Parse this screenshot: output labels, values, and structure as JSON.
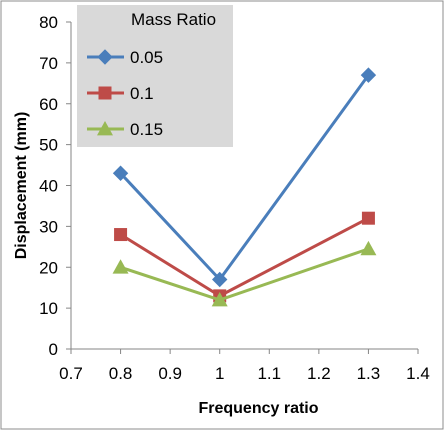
{
  "chart_data": {
    "type": "line",
    "xlabel": "Frequency ratio",
    "ylabel": "Displacement (mm)",
    "xlim": [
      0.7,
      1.4
    ],
    "ylim": [
      0,
      80
    ],
    "x_ticks": [
      "0.7",
      "0.8",
      "0.9",
      "1",
      "1.1",
      "1.2",
      "1.3",
      "1.4"
    ],
    "y_ticks": [
      "0",
      "10",
      "20",
      "30",
      "40",
      "50",
      "60",
      "70",
      "80"
    ],
    "grid": false,
    "legend": {
      "title": "Mass Ratio",
      "placement": "top-left",
      "background": "#d9d9d9"
    },
    "x": [
      0.8,
      1.0,
      1.3
    ],
    "series": [
      {
        "name": "0.05",
        "values": [
          43,
          17,
          67
        ],
        "color": "#4a7ebb",
        "marker": "diamond"
      },
      {
        "name": "0.1",
        "values": [
          28,
          13,
          32
        ],
        "color": "#be4b48",
        "marker": "square"
      },
      {
        "name": "0.15",
        "values": [
          20,
          12,
          24.5
        ],
        "color": "#98b954",
        "marker": "triangle"
      }
    ]
  }
}
